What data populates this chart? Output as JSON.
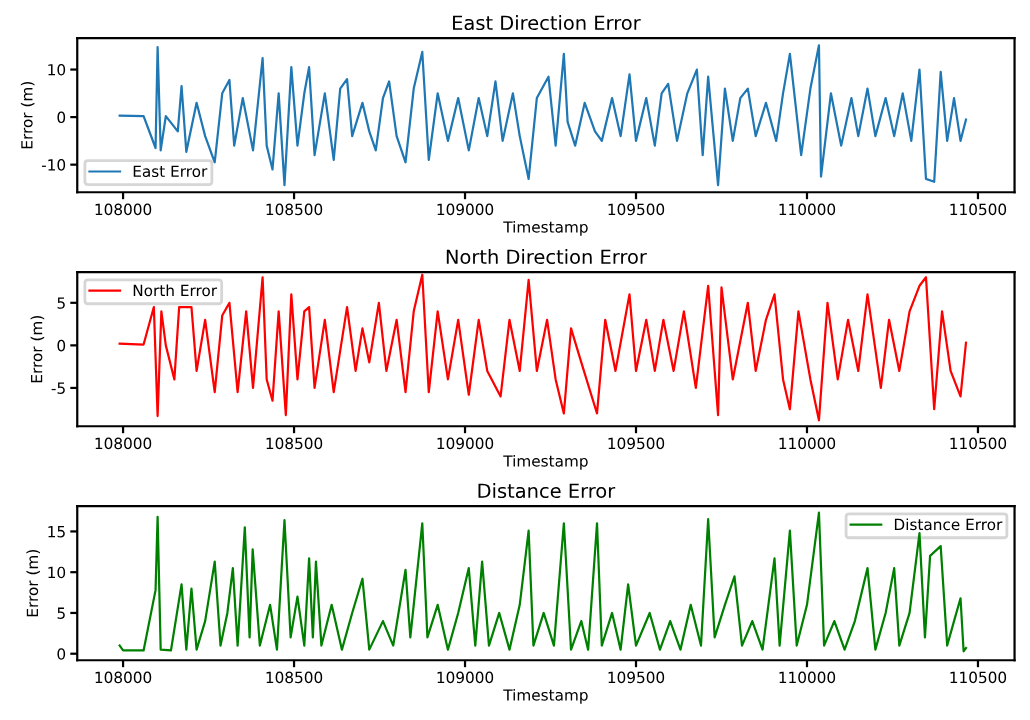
{
  "chart_data": [
    {
      "type": "line",
      "title": "East Direction Error",
      "xlabel": "Timestamp",
      "ylabel": "Error (m)",
      "xlim": [
        107866,
        110607
      ],
      "xticks": [
        108000,
        108500,
        109000,
        109500,
        110000,
        110500
      ],
      "ylim": [
        -15.8,
        16.6
      ],
      "yticks": [
        -10,
        0,
        10
      ],
      "legend": "bottom left",
      "series": [
        {
          "name": "East Error",
          "color": "#1f77b4",
          "x": [
            107990,
            108060,
            108095,
            108101,
            108110,
            108125,
            108160,
            108171,
            108185,
            108215,
            108240,
            108268,
            108290,
            108311,
            108325,
            108350,
            108380,
            108408,
            108420,
            108437,
            108455,
            108472,
            108492,
            108510,
            108530,
            108544,
            108560,
            108590,
            108616,
            108635,
            108655,
            108670,
            108700,
            108720,
            108739,
            108760,
            108778,
            108800,
            108826,
            108850,
            108875,
            108894,
            108920,
            108950,
            108980,
            109011,
            109040,
            109065,
            109089,
            109110,
            109140,
            109160,
            109186,
            109210,
            109244,
            109265,
            109289,
            109300,
            109322,
            109350,
            109380,
            109400,
            109430,
            109455,
            109481,
            109500,
            109530,
            109555,
            109575,
            109594,
            109620,
            109650,
            109678,
            109695,
            109711,
            109740,
            109760,
            109783,
            109805,
            109827,
            109850,
            109880,
            109910,
            109930,
            109950,
            109983,
            110010,
            110035,
            110041,
            110070,
            110100,
            110130,
            110150,
            110177,
            110200,
            110230,
            110255,
            110280,
            110305,
            110329,
            110348,
            110372,
            110391,
            110410,
            110430,
            110449,
            110465
          ],
          "values": [
            0.3,
            0.2,
            -6.5,
            14.7,
            -7,
            0.2,
            -3,
            6.5,
            -7.3,
            3,
            -4,
            -9.5,
            5,
            7.8,
            -6,
            4,
            -7,
            12.4,
            -6,
            -11,
            5,
            -14.3,
            10.5,
            -6,
            5,
            10.5,
            -8,
            5,
            -9,
            6,
            8,
            -4,
            3,
            -3,
            -7,
            4,
            7.5,
            -4,
            -9.5,
            6,
            13.7,
            -9,
            5,
            -5,
            4,
            -7,
            4,
            -4,
            7.5,
            -5,
            5,
            -4,
            -13,
            4,
            8.5,
            -6,
            13.3,
            -1,
            -6,
            3,
            -3,
            -5,
            4,
            -4,
            9,
            -5,
            4,
            -6,
            5,
            7,
            -5,
            5,
            10,
            -8,
            8.5,
            -14.3,
            6,
            -5,
            4,
            6,
            -4,
            3,
            -5,
            5,
            13.3,
            -8,
            6,
            15.1,
            -12.5,
            5,
            -6,
            4,
            -4,
            6,
            -4,
            4,
            -4,
            5,
            -5,
            10,
            -13,
            -13.6,
            9.5,
            -5,
            4,
            -5,
            -0.5
          ]
        }
      ]
    },
    {
      "type": "line",
      "title": "North Direction Error",
      "xlabel": "Timestamp",
      "ylabel": "Error (m)",
      "xlim": [
        107866,
        110607
      ],
      "xticks": [
        108000,
        108500,
        109000,
        109500,
        110000,
        110500
      ],
      "ylim": [
        -9.5,
        8.6
      ],
      "yticks": [
        -5,
        0,
        5
      ],
      "legend": "top left",
      "series": [
        {
          "name": "North Error",
          "color": "#ff0000",
          "x": [
            107990,
            108060,
            108090,
            108101,
            108112,
            108125,
            108150,
            108164,
            108200,
            108215,
            108240,
            108268,
            108290,
            108311,
            108335,
            108360,
            108380,
            108408,
            108420,
            108437,
            108455,
            108476,
            108492,
            108510,
            108530,
            108544,
            108560,
            108590,
            108616,
            108655,
            108680,
            108700,
            108720,
            108748,
            108770,
            108800,
            108826,
            108850,
            108875,
            108894,
            108920,
            108950,
            108980,
            109011,
            109040,
            109065,
            109104,
            109130,
            109160,
            109186,
            109210,
            109240,
            109265,
            109289,
            109310,
            109340,
            109386,
            109410,
            109440,
            109481,
            109500,
            109530,
            109555,
            109580,
            109610,
            109640,
            109675,
            109711,
            109740,
            109750,
            109783,
            109827,
            109850,
            109880,
            109905,
            109930,
            109950,
            109975,
            110010,
            110035,
            110060,
            110090,
            110120,
            110150,
            110177,
            110216,
            110240,
            110270,
            110300,
            110329,
            110348,
            110372,
            110395,
            110420,
            110449,
            110465
          ],
          "values": [
            0.2,
            0.1,
            4.5,
            -8.3,
            4,
            0,
            -4,
            4.5,
            4.5,
            -3,
            3,
            -5.5,
            3.5,
            5,
            -5.5,
            4,
            -5,
            8,
            -4,
            -6.5,
            4,
            -8.2,
            6,
            -4,
            4,
            4.5,
            -5,
            3,
            -5.5,
            4.5,
            -3,
            2,
            -2,
            5,
            -3,
            3,
            -5.5,
            4,
            8.3,
            -5.5,
            4,
            -4,
            3,
            -5.8,
            3,
            -3,
            -6,
            3,
            -3,
            7.7,
            -3,
            3,
            -4,
            -8,
            2,
            -2,
            -8,
            3,
            -3,
            6,
            -3,
            3,
            -3,
            3,
            -3,
            4,
            -5,
            7,
            -8.2,
            6.8,
            -4,
            5,
            -3,
            3,
            6,
            -4,
            -7.5,
            4,
            -4,
            -8.8,
            5,
            -4,
            3,
            -3,
            6,
            -5,
            3,
            -3,
            4,
            7,
            8,
            -7.5,
            4,
            -3,
            -6,
            0.3
          ]
        }
      ]
    },
    {
      "type": "line",
      "title": "Distance Error",
      "xlabel": "Timestamp",
      "ylabel": "Error (m)",
      "xlim": [
        107866,
        110607
      ],
      "xticks": [
        108000,
        108500,
        109000,
        109500,
        110000,
        110500
      ],
      "ylim": [
        -0.8,
        18.1
      ],
      "yticks": [
        0,
        5,
        10,
        15
      ],
      "legend": "top right",
      "series": [
        {
          "name": "Distance Error",
          "color": "#008000",
          "x": [
            107990,
            108000,
            108060,
            108095,
            108101,
            108110,
            108140,
            108171,
            108185,
            108200,
            108215,
            108240,
            108268,
            108285,
            108305,
            108321,
            108335,
            108356,
            108370,
            108379,
            108400,
            108430,
            108450,
            108472,
            108490,
            108510,
            108530,
            108544,
            108555,
            108564,
            108580,
            108610,
            108640,
            108670,
            108700,
            108720,
            108760,
            108790,
            108826,
            108840,
            108875,
            108890,
            108920,
            108950,
            108980,
            109011,
            109030,
            109050,
            109070,
            109100,
            109130,
            109160,
            109186,
            109200,
            109230,
            109260,
            109289,
            109310,
            109340,
            109360,
            109386,
            109400,
            109430,
            109455,
            109477,
            109500,
            109540,
            109570,
            109600,
            109630,
            109660,
            109690,
            109711,
            109730,
            109760,
            109788,
            109810,
            109840,
            109870,
            109905,
            109920,
            109950,
            109970,
            110000,
            110035,
            110050,
            110080,
            110110,
            110140,
            110177,
            110200,
            110230,
            110255,
            110270,
            110300,
            110329,
            110345,
            110360,
            110391,
            110410,
            110430,
            110449,
            110458,
            110465
          ],
          "values": [
            1,
            0.4,
            0.4,
            7.8,
            16.8,
            0.5,
            0.4,
            8.5,
            0.5,
            8,
            0.5,
            4,
            11.3,
            1,
            5,
            10.5,
            1,
            15.5,
            2,
            12.8,
            1,
            6,
            0.5,
            16.4,
            2,
            7,
            1,
            11.7,
            2,
            11.3,
            1,
            6,
            0.5,
            5,
            9.2,
            0.5,
            4,
            1,
            10.3,
            2,
            16,
            2,
            6,
            0.5,
            5,
            10.5,
            1,
            11.3,
            1,
            5,
            0.5,
            6,
            15.1,
            1,
            5,
            1,
            16,
            0.5,
            4,
            0.5,
            16,
            1,
            5,
            0.5,
            8.5,
            1,
            5,
            0.5,
            4,
            0.5,
            6,
            1,
            16.5,
            2,
            6,
            9.5,
            1,
            4,
            0.5,
            11.7,
            1,
            15.1,
            1,
            6,
            17.3,
            1,
            4,
            0.5,
            4,
            10.5,
            0.5,
            5,
            10.5,
            1,
            5,
            14.8,
            2,
            12,
            13.2,
            1,
            4,
            6.8,
            0.3,
            0.7
          ]
        }
      ]
    }
  ]
}
